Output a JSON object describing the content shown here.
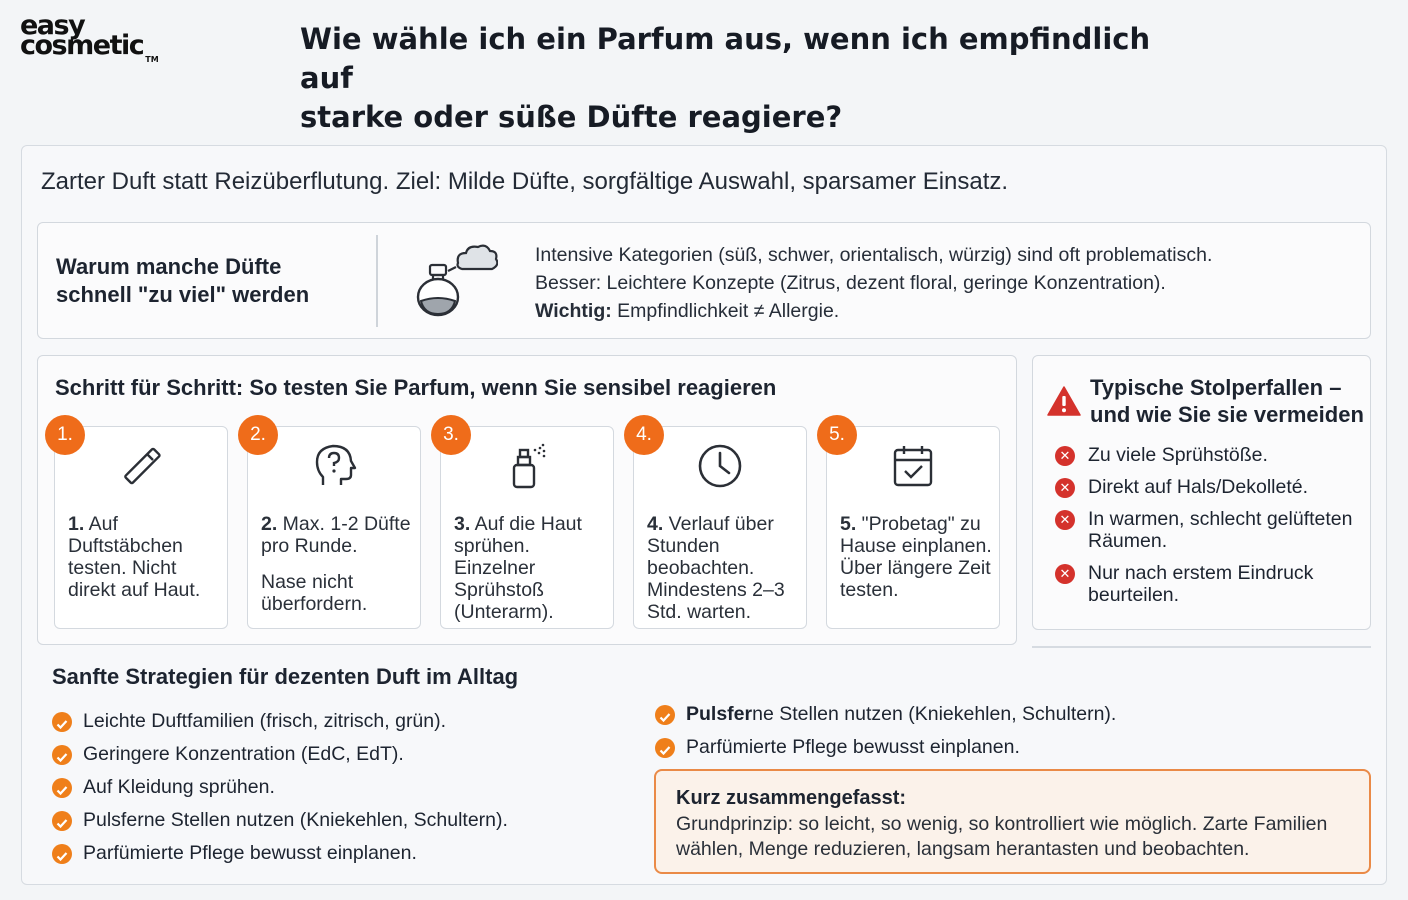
{
  "header": {
    "logo_line1": "easy",
    "logo_line2": "cosmetic",
    "logo_tm": "TM",
    "title_line1": "Wie wähle ich ein Parfum aus, wenn ich empfindlich auf",
    "title_line2": "starke oder süße Düfte reagiere?"
  },
  "subtitle": "Zarter Duft statt Reizüberflutung. Ziel: Milde Düfte, sorgfältige Auswahl, sparsamer Einsatz.",
  "why": {
    "heading_line1": "Warum manche Düfte",
    "heading_line2": "schnell \"zu viel\" werden",
    "icon": "perfume-bottle-cloud-icon",
    "line1": "Intensive Kategorien (süß, schwer, orientalisch, würzig) sind oft problematisch.",
    "line2": "Besser: Leichtere Konzepte (Zitrus, dezent floral, geringe Konzentration).",
    "line3_bold": "Wichtig:",
    "line3_rest": " Empfindlichkeit ≠ Allergie."
  },
  "steps": {
    "heading": "Schritt für Schritt: So testen Sie Parfum, wenn Sie sensibel reagieren",
    "items": [
      {
        "badge": "1.",
        "icon": "test-strip-icon",
        "bold": "1.",
        "text": " Auf Duftstäbchen testen. Nicht direkt auf Haut.",
        "extra": ""
      },
      {
        "badge": "2.",
        "icon": "head-question-icon",
        "bold": "2.",
        "text": " Max. 1-2 Düfte pro Runde.",
        "extra": "Nase nicht überfordern."
      },
      {
        "badge": "3.",
        "icon": "spray-bottle-icon",
        "bold": "3.",
        "text": " Auf die Haut sprühen. Einzelner Sprühstoß (Unterarm).",
        "extra": ""
      },
      {
        "badge": "4.",
        "icon": "clock-icon",
        "bold": "4.",
        "text": " Verlauf über Stunden beobachten. Mindestens 2–3 Std. warten.",
        "extra": ""
      },
      {
        "badge": "5.",
        "icon": "calendar-check-icon",
        "bold": "5.",
        "text": " \"Probetag\" zu Hause einplanen. Über längere Zeit testen.",
        "extra": ""
      }
    ]
  },
  "pitfalls": {
    "heading": "Typische Stolperfallen – und wie Sie sie vermeiden",
    "icon": "warning-triangle-icon",
    "items": [
      "Zu viele Sprühstöße.",
      "Direkt auf Hals/Dekolleté.",
      "In warmen, schlecht gelüfteten Räumen.",
      "Nur nach erstem Eindruck beurteilen."
    ]
  },
  "strategies": {
    "heading": "Sanfte Strategien für dezenten Duft im Alltag",
    "left": [
      "Leichte Duftfamilien (frisch, zitrisch, grün).",
      "Geringere Konzentration (EdC, EdT).",
      "Auf Kleidung sprühen.",
      "Pulsferne Stellen nutzen (Kniekehlen, Schultern).",
      "Parfümierte Pflege bewusst einplanen."
    ],
    "right": [
      {
        "bold": "Pulsfer",
        "rest": "ne Stellen nutzen (Kniekehlen, Schultern)."
      },
      {
        "bold": "",
        "rest": "Parfümierte Pflege bewusst einplanen."
      }
    ]
  },
  "summary": {
    "title": "Kurz zusammengefasst:",
    "text": "Grundprinzip: so leicht, so wenig, so kontrolliert wie möglich. Zarte Familien wählen, Menge reduzieren, langsam herantasten und beobachten."
  },
  "colors": {
    "accent_orange": "#ef6c1a",
    "warning_red": "#d4322c",
    "summary_border": "#ea8a47"
  }
}
